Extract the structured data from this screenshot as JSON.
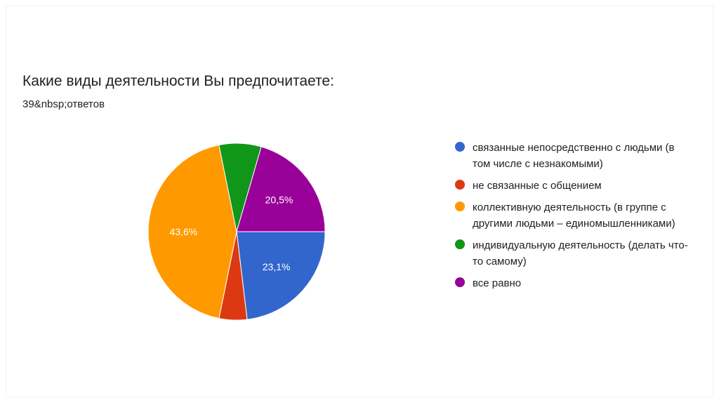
{
  "chart_data": {
    "type": "pie",
    "title": "Какие виды деятельности Вы предпочитаете:",
    "subtitle": "39&nbsp;ответов",
    "legend_position": "right",
    "slices": [
      {
        "name": "связанные непосредственно с людьми (в том числе с незнакомыми)",
        "value": 23.1,
        "label": "23,1%",
        "color": "#3366cc"
      },
      {
        "name": "не связанные с общением",
        "value": 5.1,
        "label": "",
        "color": "#dc3912"
      },
      {
        "name": "коллективную деятельность (в группе с другими людьми – единомышленниками)",
        "value": 43.6,
        "label": "43,6%",
        "color": "#ff9900"
      },
      {
        "name": "индивидуальную деятельность (делать что-то самому)",
        "value": 7.7,
        "label": "",
        "color": "#109618"
      },
      {
        "name": "все равно",
        "value": 20.5,
        "label": "20,5%",
        "color": "#990099"
      }
    ]
  }
}
